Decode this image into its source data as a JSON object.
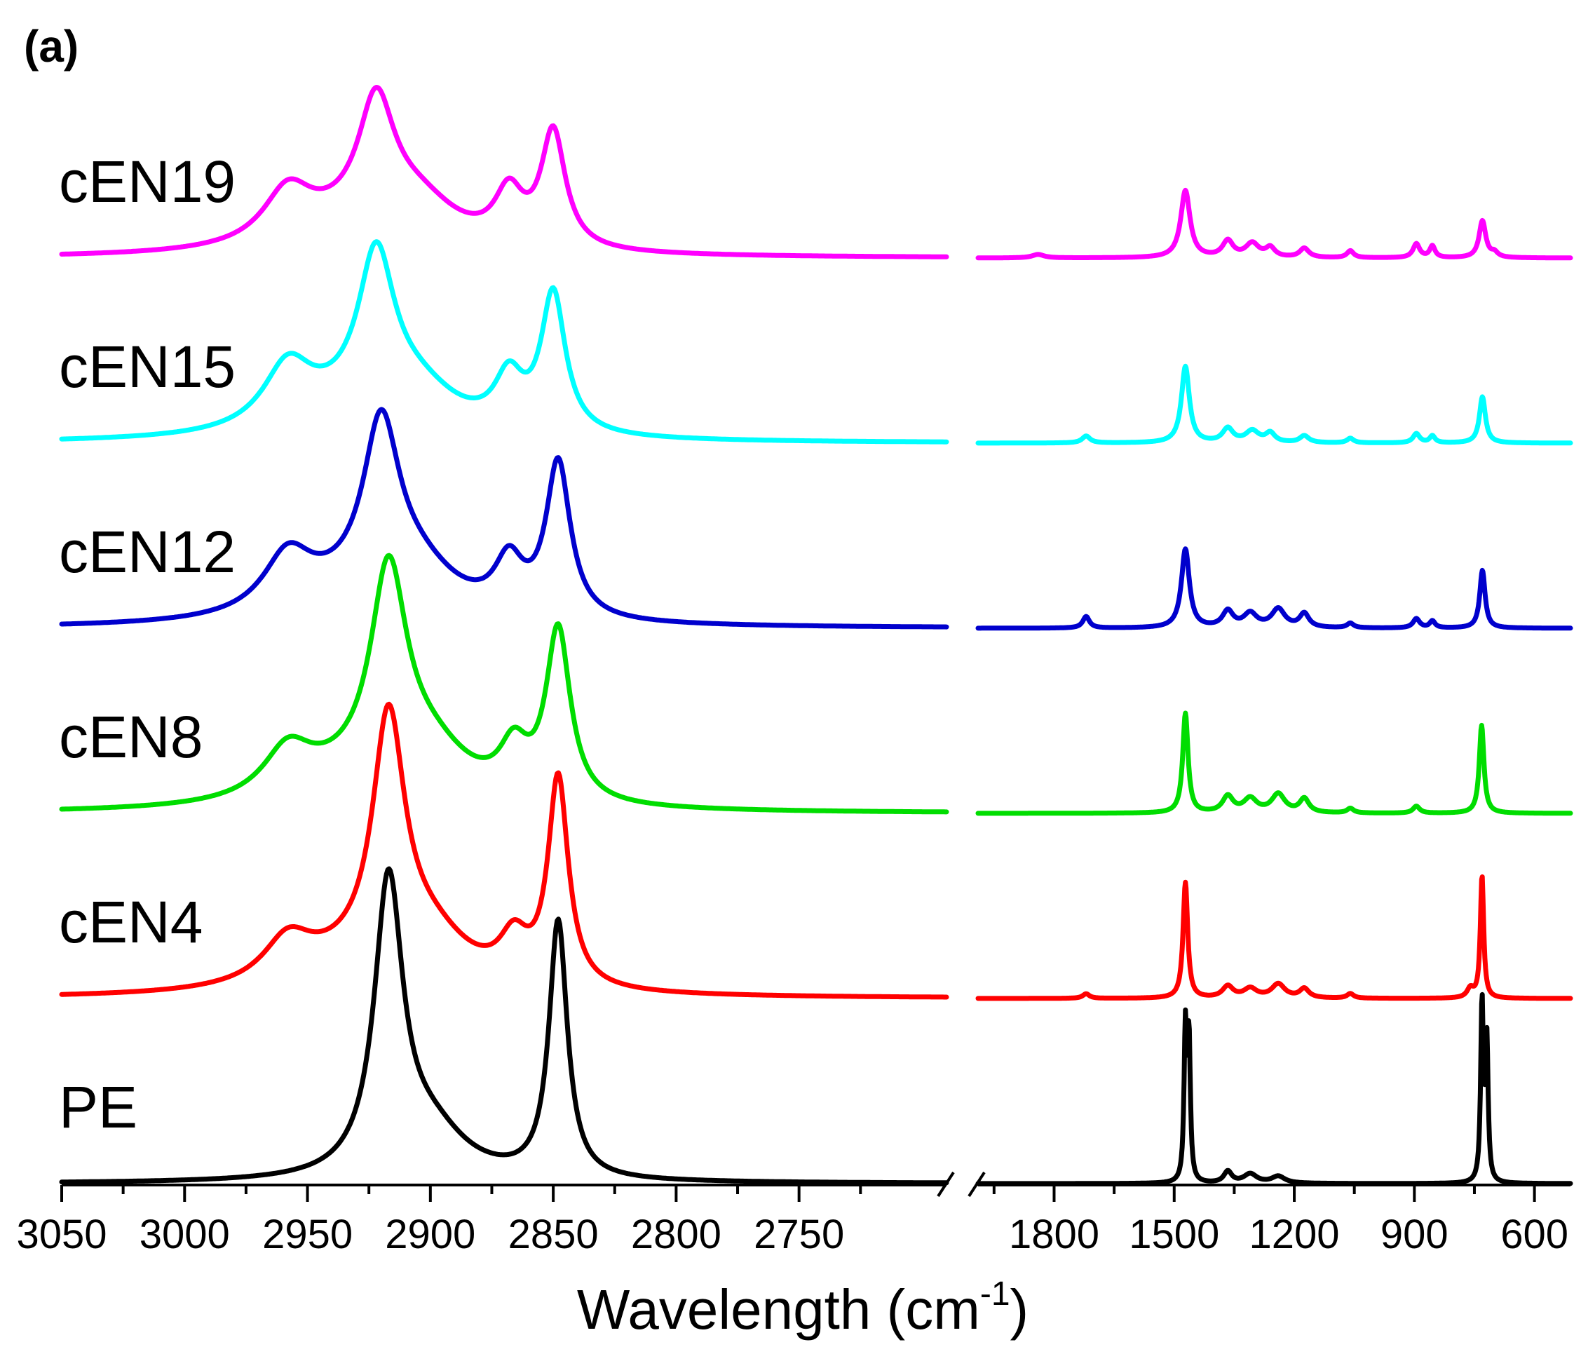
{
  "chart_data": {
    "type": "line",
    "panel_label": "(a)",
    "xlabel": "Wavelength",
    "xlabel_unit_base": "cm",
    "xlabel_unit_exp": "-1",
    "x_axis_reversed": true,
    "axis_break": true,
    "segments": [
      {
        "name": "high-wavenumber",
        "xlim": [
          3050,
          2690
        ],
        "ticks": [
          3050,
          3000,
          2950,
          2900,
          2850,
          2800,
          2750
        ],
        "minor_ticks": [
          3025,
          2975,
          2925,
          2875,
          2825,
          2775,
          2725
        ]
      },
      {
        "name": "low-wavenumber",
        "xlim": [
          1990,
          510
        ],
        "ticks": [
          1800,
          1500,
          1200,
          900,
          600
        ],
        "minor_ticks": [
          1950,
          1650,
          1350,
          1050,
          750
        ]
      }
    ],
    "series": [
      {
        "name": "cEN19",
        "color": "#ff00ff",
        "offset": 5,
        "peaks_high": [
          [
            2958,
            0.22,
            12
          ],
          [
            2922,
            0.52,
            9
          ],
          [
            2905,
            0.18,
            20
          ],
          [
            2868,
            0.22,
            7
          ],
          [
            2850,
            0.5,
            6
          ],
          [
            2935,
            0.1,
            30
          ]
        ],
        "peaks_low": [
          [
            1840,
            0.015,
            18
          ],
          [
            1472,
            0.29,
            14
          ],
          [
            1366,
            0.07,
            16
          ],
          [
            1305,
            0.06,
            20
          ],
          [
            1260,
            0.04,
            14
          ],
          [
            1175,
            0.04,
            14
          ],
          [
            1060,
            0.03,
            10
          ],
          [
            895,
            0.06,
            10
          ],
          [
            855,
            0.05,
            8
          ],
          [
            730,
            0.16,
            10
          ],
          [
            700,
            0.02,
            10
          ]
        ]
      },
      {
        "name": "cEN15",
        "color": "#00ffff",
        "offset": 4,
        "peaks_high": [
          [
            2958,
            0.26,
            12
          ],
          [
            2922,
            0.66,
            9
          ],
          [
            2905,
            0.16,
            20
          ],
          [
            2868,
            0.22,
            7
          ],
          [
            2850,
            0.6,
            6
          ],
          [
            2935,
            0.1,
            30
          ]
        ],
        "peaks_low": [
          [
            1720,
            0.03,
            12
          ],
          [
            1472,
            0.33,
            12
          ],
          [
            1366,
            0.06,
            16
          ],
          [
            1305,
            0.05,
            20
          ],
          [
            1260,
            0.04,
            14
          ],
          [
            1175,
            0.03,
            14
          ],
          [
            1060,
            0.02,
            10
          ],
          [
            895,
            0.04,
            10
          ],
          [
            855,
            0.03,
            8
          ],
          [
            730,
            0.2,
            9
          ]
        ]
      },
      {
        "name": "cEN12",
        "color": "#0000cd",
        "offset": 3,
        "peaks_high": [
          [
            2958,
            0.24,
            12
          ],
          [
            2920,
            0.72,
            9
          ],
          [
            2905,
            0.18,
            20
          ],
          [
            2868,
            0.22,
            7
          ],
          [
            2848,
            0.67,
            6
          ],
          [
            2935,
            0.1,
            30
          ]
        ],
        "peaks_low": [
          [
            1720,
            0.05,
            10
          ],
          [
            1472,
            0.34,
            12
          ],
          [
            1366,
            0.07,
            16
          ],
          [
            1310,
            0.06,
            20
          ],
          [
            1240,
            0.08,
            20
          ],
          [
            1175,
            0.06,
            14
          ],
          [
            1060,
            0.02,
            10
          ],
          [
            895,
            0.04,
            10
          ],
          [
            855,
            0.03,
            8
          ],
          [
            730,
            0.25,
            8
          ]
        ]
      },
      {
        "name": "cEN8",
        "color": "#00dd00",
        "offset": 2,
        "peaks_high": [
          [
            2958,
            0.2,
            12
          ],
          [
            2917,
            0.9,
            9
          ],
          [
            2900,
            0.2,
            20
          ],
          [
            2866,
            0.2,
            7
          ],
          [
            2848,
            0.74,
            6
          ],
          [
            2935,
            0.1,
            30
          ]
        ],
        "peaks_low": [
          [
            1472,
            0.43,
            8
          ],
          [
            1366,
            0.07,
            16
          ],
          [
            1310,
            0.06,
            20
          ],
          [
            1240,
            0.08,
            20
          ],
          [
            1175,
            0.06,
            14
          ],
          [
            1060,
            0.02,
            10
          ],
          [
            895,
            0.03,
            10
          ],
          [
            732,
            0.38,
            7
          ]
        ]
      },
      {
        "name": "cEN4",
        "color": "#ff0000",
        "offset": 1,
        "peaks_high": [
          [
            2958,
            0.18,
            12
          ],
          [
            2917,
            1.06,
            8
          ],
          [
            2900,
            0.2,
            20
          ],
          [
            2866,
            0.18,
            7
          ],
          [
            2848,
            0.9,
            5
          ],
          [
            2935,
            0.1,
            30
          ]
        ],
        "peaks_low": [
          [
            1720,
            0.02,
            10
          ],
          [
            1472,
            0.5,
            7
          ],
          [
            1366,
            0.05,
            16
          ],
          [
            1310,
            0.04,
            20
          ],
          [
            1240,
            0.06,
            20
          ],
          [
            1175,
            0.04,
            14
          ],
          [
            1060,
            0.02,
            10
          ],
          [
            760,
            0.04,
            10
          ],
          [
            731,
            0.53,
            5
          ]
        ]
      },
      {
        "name": "PE",
        "color": "#000000",
        "offset": 0,
        "peaks_high": [
          [
            2917,
            1.25,
            7
          ],
          [
            2900,
            0.2,
            18
          ],
          [
            2848,
            1.11,
            4.5
          ]
        ],
        "peaks_low": [
          [
            1472,
            0.65,
            4
          ],
          [
            1463,
            0.6,
            4
          ],
          [
            1366,
            0.05,
            12
          ],
          [
            1310,
            0.04,
            20
          ],
          [
            1240,
            0.03,
            20
          ],
          [
            731,
            0.77,
            4
          ],
          [
            719,
            0.6,
            4
          ]
        ]
      }
    ]
  }
}
